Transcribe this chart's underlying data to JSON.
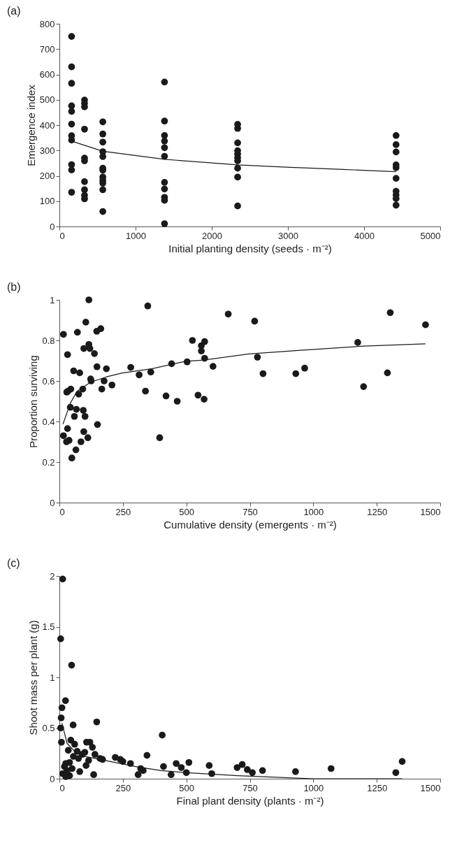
{
  "chart_data": [
    {
      "type": "scatter",
      "title": "(a)",
      "xlabel": "Initial planting density (seeds · m⁻²)",
      "ylabel": "Emergence index",
      "marker": "circle",
      "xlim": [
        0,
        5000
      ],
      "xticks": [
        0,
        1000,
        2000,
        3000,
        4000,
        5000
      ],
      "ylim": [
        0,
        800
      ],
      "yticks": [
        0,
        100,
        200,
        300,
        400,
        500,
        600,
        700,
        800
      ],
      "series": [
        {
          "type": "scatter",
          "color": "#1a1a1a",
          "x": [
            160,
            160,
            160,
            160,
            160,
            160,
            160,
            160,
            160,
            160,
            160,
            330,
            330,
            330,
            330,
            330,
            330,
            330,
            330,
            330,
            330,
            570,
            570,
            570,
            570,
            570,
            570,
            570,
            570,
            570,
            570,
            570,
            570,
            1380,
            1380,
            1380,
            1380,
            1380,
            1380,
            1380,
            1380,
            1380,
            1380,
            1380,
            2340,
            2340,
            2340,
            2340,
            2340,
            2340,
            2340,
            2340,
            2340,
            2340,
            4420,
            4420,
            4420,
            4420,
            4420,
            4420,
            4420,
            4420,
            4420,
            4420
          ],
          "values": [
            750,
            630,
            565,
            476,
            454,
            404,
            358,
            341,
            244,
            223,
            135,
            499,
            486,
            472,
            384,
            270,
            259,
            177,
            145,
            123,
            109,
            413,
            365,
            333,
            295,
            276,
            230,
            222,
            195,
            182,
            171,
            145,
            59,
            570,
            416,
            359,
            337,
            311,
            277,
            174,
            148,
            115,
            103,
            11,
            403,
            387,
            330,
            299,
            286,
            272,
            259,
            230,
            195,
            81,
            359,
            323,
            294,
            243,
            232,
            190,
            139,
            124,
            110,
            84
          ]
        },
        {
          "type": "line",
          "color": "#1a1a1a",
          "marker": "none",
          "x": [
            160,
            570,
            1380,
            2340,
            2920,
            3720,
            4420
          ],
          "values": [
            337,
            297,
            265,
            243,
            235,
            225,
            216
          ]
        }
      ]
    },
    {
      "type": "scatter",
      "title": "(b)",
      "xlabel": "Cumulative density (emergents · m⁻²)",
      "ylabel": "Proportion surviving",
      "marker": "circle",
      "xlim": [
        0,
        1500
      ],
      "xticks": [
        0,
        250,
        500,
        750,
        1000,
        1250,
        1500
      ],
      "ylim": [
        0,
        1
      ],
      "yticks": [
        0,
        0.2,
        0.4,
        0.6,
        0.8,
        1
      ],
      "series": [
        {
          "type": "scatter",
          "color": "#1a1a1a",
          "x": [
            16,
            32,
            116,
            104,
            71,
            147,
            163,
            96,
            116,
            120,
            138,
            56,
            80,
            148,
            185,
            123,
            125,
            176,
            207,
            167,
            45,
            34,
            29,
            92,
            76,
            43,
            67,
            94,
            59,
            101,
            150,
            32,
            16,
            28,
            38,
            96,
            85,
            112,
            65,
            49,
            348,
            281,
            314,
            360,
            339,
            395,
            420,
            442,
            464,
            503,
            524,
            546,
            570,
            559,
            559,
            572,
            572,
            605,
            665,
            769,
            780,
            802,
            931,
            966,
            1175,
            1198,
            1292,
            1303,
            1442
          ],
          "values": [
            0.83,
            0.73,
            1.0,
            0.89,
            0.84,
            0.845,
            0.858,
            0.76,
            0.78,
            0.76,
            0.735,
            0.65,
            0.64,
            0.67,
            0.66,
            0.61,
            0.6,
            0.6,
            0.58,
            0.56,
            0.56,
            0.55,
            0.545,
            0.56,
            0.535,
            0.47,
            0.46,
            0.455,
            0.425,
            0.425,
            0.385,
            0.365,
            0.33,
            0.3,
            0.307,
            0.35,
            0.3,
            0.32,
            0.26,
            0.22,
            0.97,
            0.667,
            0.63,
            0.644,
            0.55,
            0.32,
            0.526,
            0.685,
            0.5,
            0.694,
            0.8,
            0.53,
            0.51,
            0.748,
            0.774,
            0.794,
            0.712,
            0.672,
            0.93,
            0.895,
            0.717,
            0.636,
            0.636,
            0.663,
            0.79,
            0.572,
            0.64,
            0.937,
            0.877
          ]
        },
        {
          "type": "line",
          "color": "#1a1a1a",
          "marker": "none",
          "x": [
            14,
            43,
            69,
            123,
            185,
            247,
            363,
            497,
            567,
            745,
            949,
            1198,
            1442
          ],
          "values": [
            0.387,
            0.49,
            0.548,
            0.594,
            0.62,
            0.639,
            0.66,
            0.697,
            0.703,
            0.733,
            0.751,
            0.772,
            0.783
          ]
        }
      ]
    },
    {
      "type": "scatter",
      "title": "(c)",
      "xlabel": "Final plant density (plants · m⁻²)",
      "ylabel": "Shoot mass per plant (g)",
      "marker": "circle",
      "xlim": [
        0,
        1500
      ],
      "xticks": [
        0,
        250,
        500,
        750,
        1000,
        1250,
        1500
      ],
      "ylim": [
        0,
        2
      ],
      "yticks": [
        0,
        0.5,
        1,
        1.5,
        2
      ],
      "series": [
        {
          "type": "scatter",
          "color": "#1a1a1a",
          "x": [
            13,
            5,
            48,
            10,
            7,
            5,
            8,
            24,
            54,
            147,
            405,
            107,
            13,
            20,
            25,
            30,
            35,
            40,
            45,
            50,
            55,
            60,
            70,
            75,
            80,
            90,
            100,
            105,
            115,
            120,
            130,
            135,
            140,
            160,
            170,
            220,
            240,
            250,
            280,
            310,
            320,
            330,
            345,
            410,
            440,
            460,
            480,
            500,
            510,
            590,
            600,
            700,
            720,
            740,
            760,
            800,
            930,
            1070,
            1325,
            1350,
            40,
            25
          ],
          "values": [
            1.97,
            1.38,
            1.12,
            0.7,
            0.6,
            0.5,
            0.36,
            0.77,
            0.53,
            0.56,
            0.43,
            0.36,
            0.05,
            0.12,
            0.15,
            0.08,
            0.28,
            0.16,
            0.38,
            0.1,
            0.22,
            0.34,
            0.27,
            0.2,
            0.07,
            0.24,
            0.26,
            0.13,
            0.18,
            0.36,
            0.31,
            0.04,
            0.24,
            0.2,
            0.19,
            0.21,
            0.19,
            0.17,
            0.15,
            0.04,
            0.1,
            0.08,
            0.23,
            0.12,
            0.04,
            0.15,
            0.11,
            0.06,
            0.16,
            0.13,
            0.05,
            0.11,
            0.14,
            0.09,
            0.06,
            0.08,
            0.07,
            0.1,
            0.06,
            0.17,
            0.03,
            0.02
          ]
        },
        {
          "type": "line",
          "color": "#1a1a1a",
          "marker": "none",
          "x": [
            10,
            30,
            60,
            100,
            200,
            300,
            400,
            500,
            700,
            900,
            1000,
            1350
          ],
          "values": [
            0.55,
            0.35,
            0.27,
            0.22,
            0.17,
            0.12,
            0.08,
            0.06,
            0.03,
            0.01,
            0,
            0
          ]
        }
      ]
    }
  ]
}
